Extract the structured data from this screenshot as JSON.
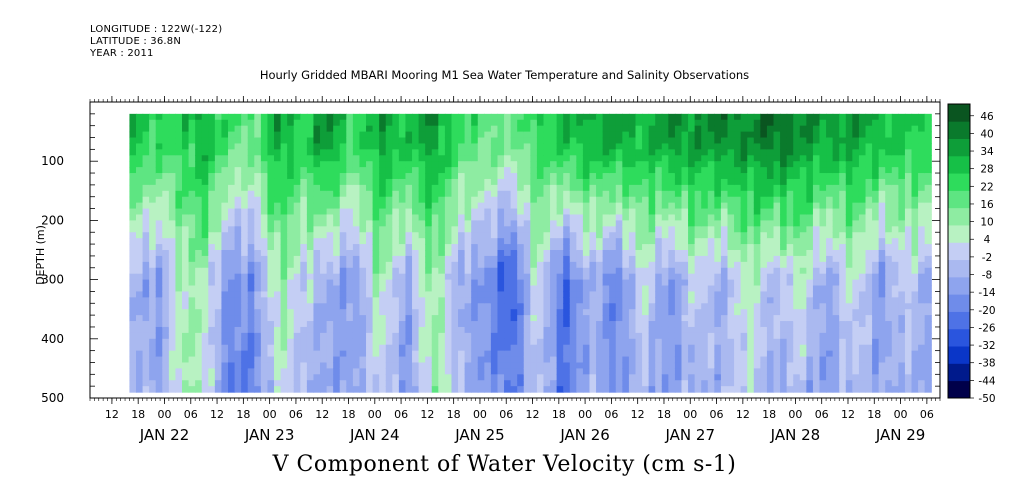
{
  "header": {
    "longitude": "LONGITUDE : 122W(-122)",
    "latitude": "LATITUDE : 36.8N",
    "year": "YEAR : 2011"
  },
  "chart_data": {
    "type": "heatmap",
    "title": "Hourly Gridded MBARI Mooring M1 Sea Water Temperature and Salinity Observations",
    "subtitle": "V Component of Water Velocity (cm s-1)",
    "ylabel": "DEPTH (m)",
    "y_reversed": true,
    "ylim": [
      0,
      500
    ],
    "y_ticks": [
      100,
      200,
      300,
      400,
      500
    ],
    "data_depth_range": [
      20,
      490
    ],
    "x_start": "2011-01-21T07:00",
    "x_end": "2011-01-29T09:00",
    "data_time_range": [
      "2011-01-21T16:00",
      "2011-01-29T06:00"
    ],
    "hour_tick_labels": [
      "12",
      "18",
      "00",
      "06",
      "12",
      "18",
      "00",
      "06",
      "12",
      "18",
      "00",
      "06",
      "12",
      "18",
      "00",
      "06",
      "12",
      "18",
      "00",
      "06",
      "12",
      "18",
      "00",
      "06",
      "12",
      "18",
      "00",
      "06",
      "12",
      "18",
      "00",
      "06"
    ],
    "hour_tick_times": [
      "2011-01-21T12:00",
      "2011-01-21T18:00",
      "2011-01-22T00:00",
      "2011-01-22T06:00",
      "2011-01-22T12:00",
      "2011-01-22T18:00",
      "2011-01-23T00:00",
      "2011-01-23T06:00",
      "2011-01-23T12:00",
      "2011-01-23T18:00",
      "2011-01-24T00:00",
      "2011-01-24T06:00",
      "2011-01-24T12:00",
      "2011-01-24T18:00",
      "2011-01-25T00:00",
      "2011-01-25T06:00",
      "2011-01-25T12:00",
      "2011-01-25T18:00",
      "2011-01-26T00:00",
      "2011-01-26T06:00",
      "2011-01-26T12:00",
      "2011-01-26T18:00",
      "2011-01-27T00:00",
      "2011-01-27T06:00",
      "2011-01-27T12:00",
      "2011-01-27T18:00",
      "2011-01-28T00:00",
      "2011-01-28T06:00",
      "2011-01-28T12:00",
      "2011-01-28T18:00",
      "2011-01-29T00:00",
      "2011-01-29T06:00"
    ],
    "date_labels": [
      "JAN 22",
      "JAN 23",
      "JAN 24",
      "JAN 25",
      "JAN 26",
      "JAN 27",
      "JAN 28",
      "JAN 29"
    ],
    "date_label_times": [
      "2011-01-22T00:00",
      "2011-01-23T00:00",
      "2011-01-24T00:00",
      "2011-01-25T00:00",
      "2011-01-26T00:00",
      "2011-01-27T00:00",
      "2011-01-28T00:00",
      "2011-01-29T00:00"
    ],
    "colorbar": {
      "min": -50,
      "max": 50,
      "levels": [
        -50,
        -44,
        -38,
        -32,
        -26,
        -20,
        -14,
        -8,
        -2,
        4,
        10,
        16,
        22,
        28,
        34,
        40,
        46
      ],
      "labels": [
        "46",
        "40",
        "34",
        "28",
        "22",
        "16",
        "10",
        "4",
        "-2",
        "-8",
        "-14",
        "-20",
        "-26",
        "-32",
        "-38",
        "-44",
        "-50"
      ],
      "colors": [
        "#00004a",
        "#001a8c",
        "#0a36c8",
        "#2a55de",
        "#4e72e6",
        "#6f8cea",
        "#8ea4ee",
        "#aab9f0",
        "#c4cef4",
        "#b8f2c2",
        "#8eeca2",
        "#5ee582",
        "#2edc5c",
        "#16c047",
        "#0e9e39",
        "#0a7a2c",
        "#0a5520"
      ]
    },
    "column_profiles": [
      {
        "day": 21.7,
        "top": 30,
        "mid": -6,
        "bottom": -4
      },
      {
        "day": 21.95,
        "top": 24,
        "mid": -12,
        "bottom": -10
      },
      {
        "day": 22.2,
        "top": 26,
        "mid": 10,
        "bottom": 12
      },
      {
        "day": 22.4,
        "top": 34,
        "mid": 8,
        "bottom": 4
      },
      {
        "day": 22.6,
        "top": 20,
        "mid": -16,
        "bottom": -18
      },
      {
        "day": 22.85,
        "top": 16,
        "mid": -14,
        "bottom": -20
      },
      {
        "day": 23.1,
        "top": 36,
        "mid": 12,
        "bottom": 6
      },
      {
        "day": 23.3,
        "top": 24,
        "mid": 2,
        "bottom": -8
      },
      {
        "day": 23.55,
        "top": 40,
        "mid": -8,
        "bottom": -10
      },
      {
        "day": 23.8,
        "top": 20,
        "mid": -14,
        "bottom": -12
      },
      {
        "day": 24.05,
        "top": 36,
        "mid": 12,
        "bottom": 2
      },
      {
        "day": 24.3,
        "top": 28,
        "mid": -10,
        "bottom": -16
      },
      {
        "day": 24.55,
        "top": 38,
        "mid": 14,
        "bottom": 12
      },
      {
        "day": 24.8,
        "top": 22,
        "mid": -8,
        "bottom": -4
      },
      {
        "day": 25.05,
        "top": 18,
        "mid": -14,
        "bottom": -14
      },
      {
        "day": 25.3,
        "top": 14,
        "mid": -30,
        "bottom": -20
      },
      {
        "day": 25.55,
        "top": 24,
        "mid": 8,
        "bottom": -2
      },
      {
        "day": 25.8,
        "top": 30,
        "mid": -26,
        "bottom": -22
      },
      {
        "day": 26.05,
        "top": 32,
        "mid": -4,
        "bottom": -8
      },
      {
        "day": 26.3,
        "top": 36,
        "mid": -22,
        "bottom": -12
      },
      {
        "day": 26.55,
        "top": 30,
        "mid": 6,
        "bottom": -6
      },
      {
        "day": 26.8,
        "top": 38,
        "mid": -16,
        "bottom": -12
      },
      {
        "day": 27.05,
        "top": 36,
        "mid": 4,
        "bottom": -8
      },
      {
        "day": 27.3,
        "top": 40,
        "mid": -10,
        "bottom": -6
      },
      {
        "day": 27.55,
        "top": 38,
        "mid": 10,
        "bottom": 2
      },
      {
        "day": 27.8,
        "top": 44,
        "mid": -6,
        "bottom": -10
      },
      {
        "day": 28.05,
        "top": 38,
        "mid": 8,
        "bottom": -4
      },
      {
        "day": 28.3,
        "top": 34,
        "mid": -12,
        "bottom": -14
      },
      {
        "day": 28.55,
        "top": 36,
        "mid": 6,
        "bottom": -2
      },
      {
        "day": 28.8,
        "top": 30,
        "mid": -14,
        "bottom": -10
      },
      {
        "day": 29.05,
        "top": 28,
        "mid": 2,
        "bottom": -6
      },
      {
        "day": 29.25,
        "top": 26,
        "mid": -8,
        "bottom": -10
      }
    ]
  }
}
